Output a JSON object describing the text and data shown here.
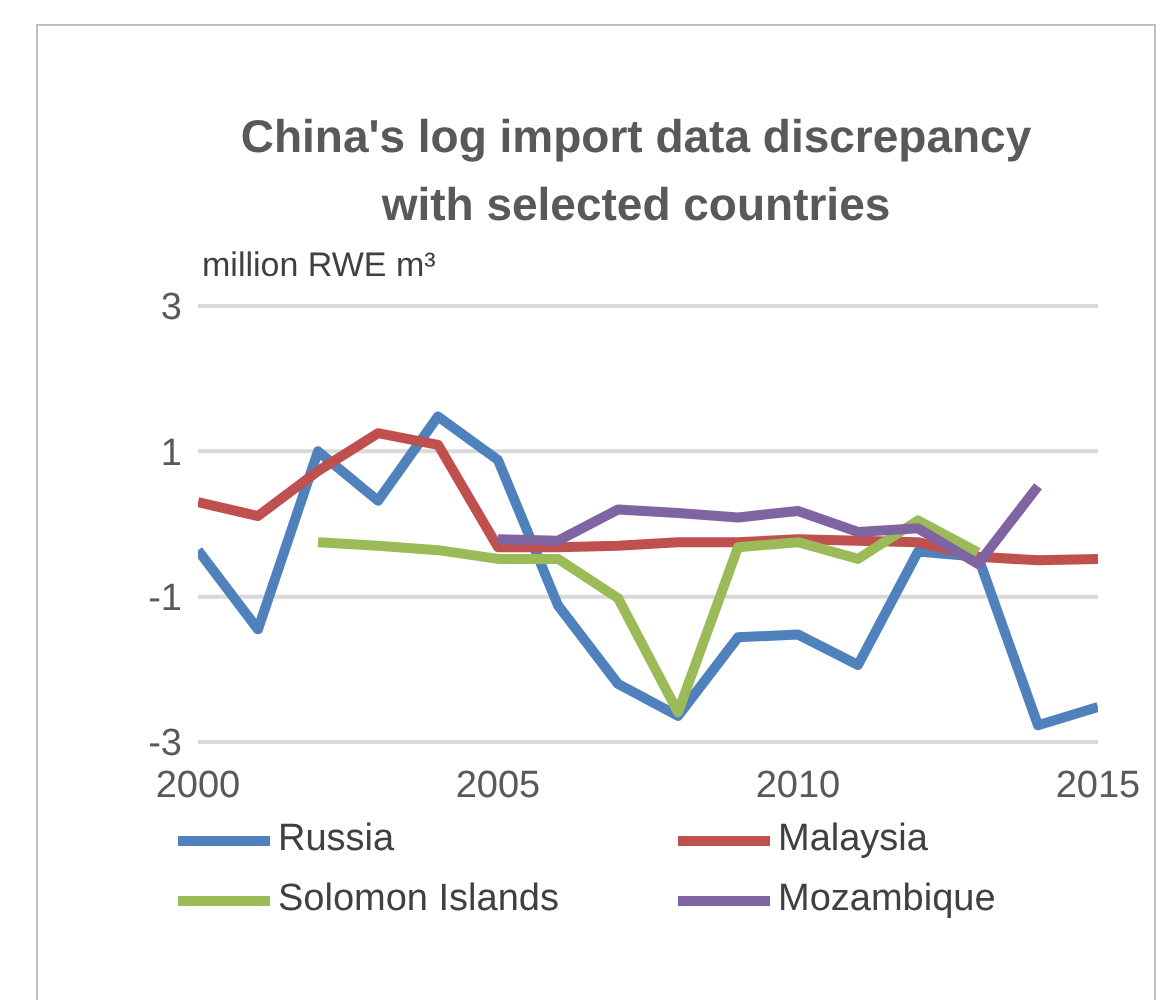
{
  "chart_data": {
    "type": "line",
    "title": "China's log import data discrepancy with selected countries",
    "ylabel": "million RWE m³",
    "x": [
      2000,
      2001,
      2002,
      2003,
      2004,
      2005,
      2006,
      2007,
      2008,
      2009,
      2010,
      2011,
      2012,
      2013,
      2014,
      2015
    ],
    "series": [
      {
        "name": "Russia",
        "color": "#4f81bd",
        "values": [
          -0.36,
          -1.45,
          1.0,
          0.32,
          1.48,
          0.88,
          -1.12,
          -2.2,
          -2.64,
          -1.56,
          -1.52,
          -1.94,
          -0.38,
          -0.45,
          -2.77,
          -2.52
        ]
      },
      {
        "name": "Malaysia",
        "color": "#c0504d",
        "values": [
          0.3,
          0.11,
          0.73,
          1.25,
          1.09,
          -0.32,
          -0.32,
          -0.3,
          -0.25,
          -0.25,
          -0.21,
          -0.23,
          -0.25,
          -0.45,
          -0.5,
          -0.48
        ]
      },
      {
        "name": "Solomon Islands",
        "color": "#9bbb59",
        "values": [
          null,
          null,
          -0.25,
          -0.3,
          -0.36,
          -0.48,
          -0.48,
          -1.02,
          -2.59,
          -0.32,
          -0.25,
          -0.48,
          0.05,
          -0.39,
          null,
          null
        ]
      },
      {
        "name": "Mozambique",
        "color": "#8064a2",
        "values": [
          null,
          null,
          null,
          null,
          null,
          -0.21,
          -0.23,
          0.2,
          0.15,
          0.09,
          0.18,
          -0.11,
          -0.06,
          -0.55,
          0.52,
          null
        ]
      }
    ],
    "xlim": [
      2000,
      2015
    ],
    "xticks": [
      2000,
      2005,
      2010,
      2015
    ],
    "ylim": [
      -3,
      3
    ],
    "yticks": [
      -3,
      -1,
      1,
      3
    ],
    "grid": "y",
    "legend": "bottom",
    "marker": "none",
    "line_style": "solid"
  }
}
